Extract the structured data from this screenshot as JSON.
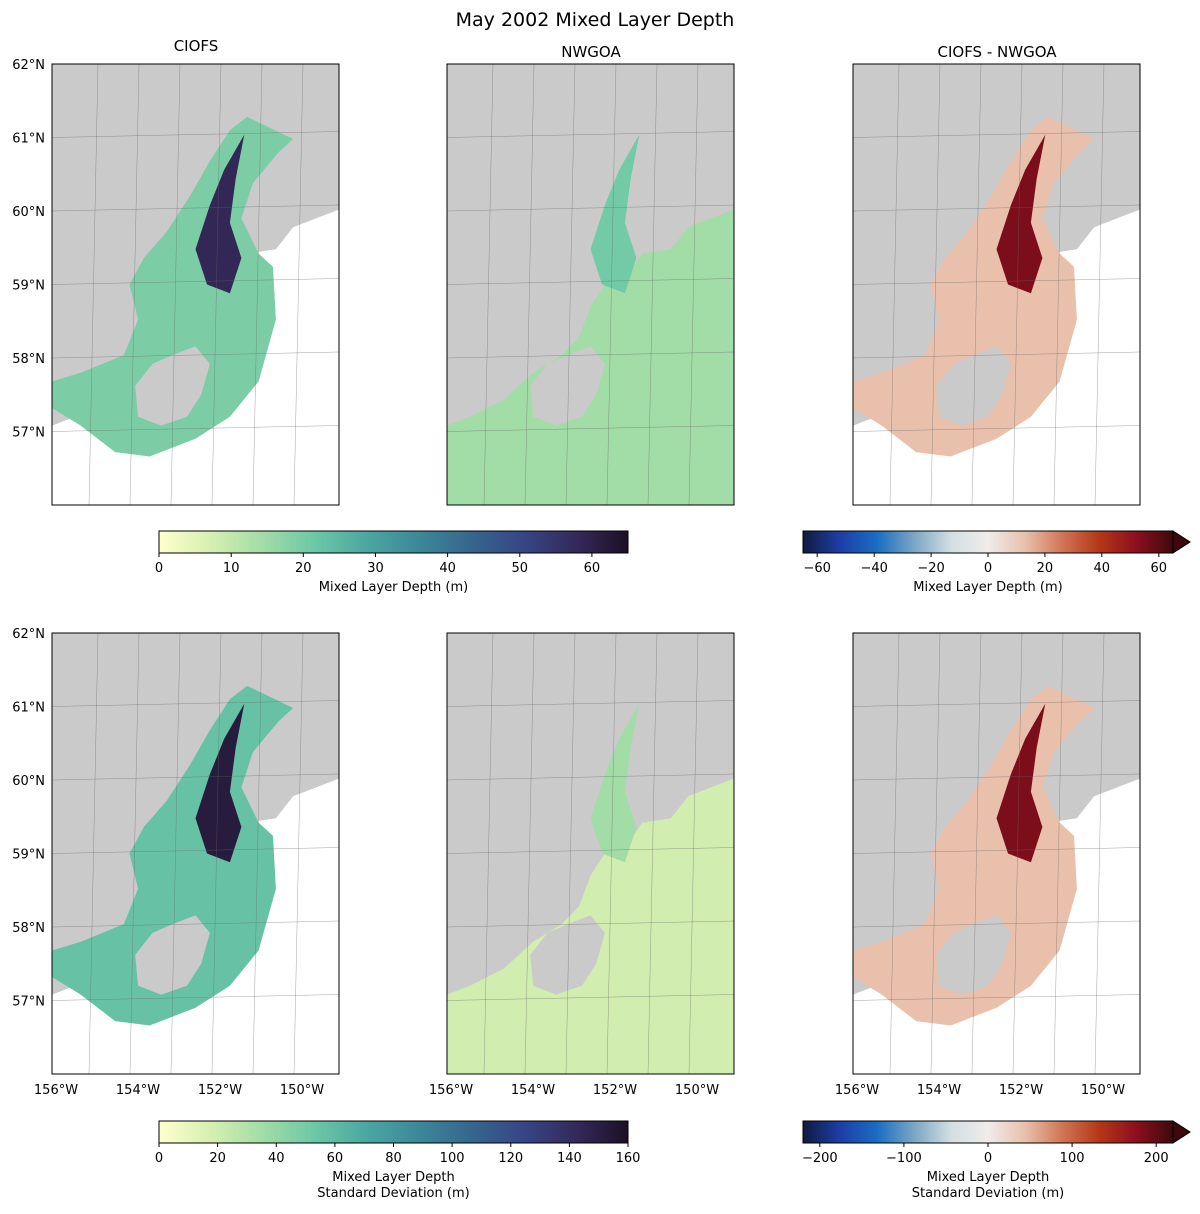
{
  "figure": {
    "title": "May 2002 Mixed Layer Depth",
    "column_titles": [
      "CIOFS",
      "NWGOA",
      "CIOFS - NWGOA"
    ]
  },
  "chart_data": {
    "type": "heatmap",
    "title": "May 2002 Mixed Layer Depth",
    "map_extent": {
      "lon": [
        -156,
        -149
      ],
      "lat": [
        56,
        62
      ]
    },
    "lat_ticks": [
      "62°N",
      "61°N",
      "60°N",
      "59°N",
      "58°N",
      "57°N"
    ],
    "lon_ticks": [
      "156°W",
      "154°W",
      "152°W",
      "150°W"
    ],
    "colors": {
      "land": "#cacaca",
      "grid": "#666666"
    },
    "panels": [
      {
        "row": 0,
        "col": 0,
        "title": "CIOFS",
        "quantity": "mean",
        "domain": "ciofs",
        "cmap": "seq",
        "level": 0.45
      },
      {
        "row": 0,
        "col": 1,
        "title": "NWGOA",
        "quantity": "mean",
        "domain": "nwgoa",
        "cmap": "seq",
        "level": 0.22
      },
      {
        "row": 0,
        "col": 2,
        "title": "CIOFS - NWGOA",
        "quantity": "difference",
        "domain": "ciofs",
        "cmap": "div",
        "level": 0.68
      },
      {
        "row": 1,
        "col": 0,
        "title": "",
        "quantity": "std",
        "domain": "ciofs",
        "cmap": "seq",
        "level": 0.5
      },
      {
        "row": 1,
        "col": 1,
        "title": "",
        "quantity": "std",
        "domain": "nwgoa",
        "cmap": "seq",
        "level": 0.12
      },
      {
        "row": 1,
        "col": 2,
        "title": "",
        "quantity": "difference",
        "domain": "ciofs",
        "cmap": "div",
        "level": 0.7
      }
    ],
    "colorbars": [
      {
        "id": "seq-mean",
        "cmap": "seq",
        "range": [
          0,
          65
        ],
        "ticks": [
          0,
          10,
          20,
          30,
          40,
          50,
          60
        ],
        "label": [
          "Mixed Layer Depth (m)"
        ],
        "extend": "neither"
      },
      {
        "id": "div-mean",
        "cmap": "div",
        "range": [
          -65,
          65
        ],
        "ticks": [
          -60,
          -40,
          -20,
          0,
          20,
          40,
          60
        ],
        "tick_labels": [
          "−60",
          "−40",
          "−20",
          "0",
          "20",
          "40",
          "60"
        ],
        "label": [
          "Mixed Layer Depth (m)"
        ],
        "extend": "max"
      },
      {
        "id": "seq-std",
        "cmap": "seq",
        "range": [
          0,
          160
        ],
        "ticks": [
          0,
          20,
          40,
          60,
          80,
          100,
          120,
          140,
          160
        ],
        "label": [
          "Mixed Layer Depth",
          "Standard Deviation (m)"
        ],
        "extend": "neither"
      },
      {
        "id": "div-std",
        "cmap": "div",
        "range": [
          -220,
          220
        ],
        "ticks": [
          -200,
          -100,
          0,
          100,
          200
        ],
        "tick_labels": [
          "−200",
          "−100",
          "0",
          "100",
          "200"
        ],
        "label": [
          "Mixed Layer Depth",
          "Standard Deviation (m)"
        ],
        "extend": "max"
      }
    ],
    "colormaps": {
      "seq": [
        "#ffffcc",
        "#d6efb1",
        "#a1dca6",
        "#6cc7a6",
        "#4aa7a0",
        "#3c8799",
        "#36668e",
        "#374585",
        "#342a5a",
        "#1c1025"
      ],
      "div": [
        "#121a40",
        "#1d3ea6",
        "#1a6dc2",
        "#7aa6c4",
        "#d2dfe2",
        "#f0ecea",
        "#e8c0ac",
        "#d07656",
        "#b43718",
        "#8c0f1e",
        "#3c0a0e"
      ]
    }
  }
}
